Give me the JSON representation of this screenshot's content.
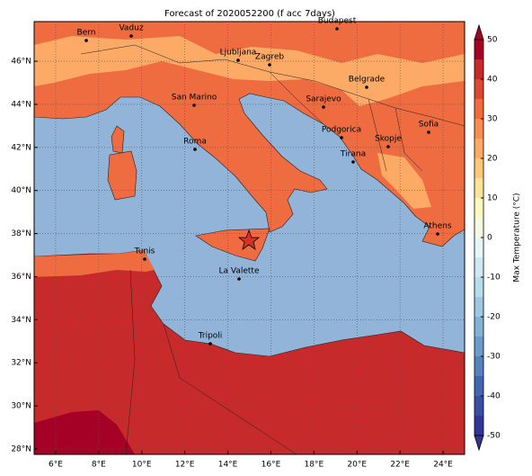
{
  "title": "Forecast of 2020052200 (f acc 7days)",
  "map": {
    "xlim": [
      5,
      25
    ],
    "ylim": [
      27.75,
      47.84
    ],
    "xticks": [
      {
        "value": 6,
        "label": "6°E"
      },
      {
        "value": 8,
        "label": "8°E"
      },
      {
        "value": 10,
        "label": "10°E"
      },
      {
        "value": 12,
        "label": "12°E"
      },
      {
        "value": 14,
        "label": "14°E"
      },
      {
        "value": 16,
        "label": "16°E"
      },
      {
        "value": 18,
        "label": "18°E"
      },
      {
        "value": 20,
        "label": "20°E"
      },
      {
        "value": 22,
        "label": "22°E"
      },
      {
        "value": 24,
        "label": "24°E"
      }
    ],
    "yticks": [
      {
        "value": 28,
        "label": "28°N"
      },
      {
        "value": 30,
        "label": "30°N"
      },
      {
        "value": 32,
        "label": "32°N"
      },
      {
        "value": 34,
        "label": "34°N"
      },
      {
        "value": 36,
        "label": "36°N"
      },
      {
        "value": 38,
        "label": "38°N"
      },
      {
        "value": 40,
        "label": "40°N"
      },
      {
        "value": 42,
        "label": "42°N"
      },
      {
        "value": 44,
        "label": "44°N"
      },
      {
        "value": 46,
        "label": "46°N"
      }
    ],
    "grid": true,
    "cities": [
      "Bern",
      "Vaduz",
      "Budapest",
      "Ljubljana",
      "Zagreb",
      "Belgrade",
      "Sarajevo",
      "San Marino",
      "Sofia",
      "Podgorica",
      "Skopje",
      "Roma",
      "Tirana",
      "Athens",
      "Tunis",
      "La Valette",
      "Tripoli"
    ]
  },
  "colorbar": {
    "label": "Max Temperature (°C)",
    "lim": [
      -50,
      50
    ],
    "ticks": [
      -50,
      -40,
      -30,
      -20,
      -10,
      0,
      10,
      20,
      30,
      40,
      50
    ],
    "levels": [
      -50,
      -45,
      -40,
      -35,
      -30,
      -25,
      -20,
      -15,
      -10,
      -5,
      0,
      5,
      10,
      15,
      20,
      25,
      30,
      35,
      40,
      45,
      50
    ],
    "colors": [
      "#313695",
      "#3a4ea0",
      "#4266ad",
      "#5582bc",
      "#6b9bc9",
      "#84b2d6",
      "#9ec8e1",
      "#b8dceb",
      "#cfe9f2",
      "#e6f5f5",
      "#f5fbe0",
      "#fff6c0",
      "#fee39a",
      "#fdc77c",
      "#fcaa65",
      "#f88c51",
      "#ef6b40",
      "#dd4632",
      "#c62a2a",
      "#a50026"
    ]
  }
}
